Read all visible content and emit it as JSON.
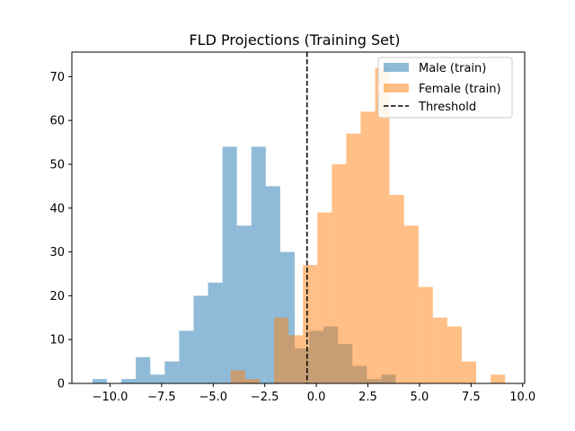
{
  "chart_data": {
    "type": "histogram",
    "title": "FLD Projections (Training Set)",
    "xlabel": "",
    "ylabel": "",
    "xlim": [
      -11.85,
      10.1
    ],
    "ylim": [
      0,
      75.6
    ],
    "x_ticks": [
      -10.0,
      -7.5,
      -5.0,
      -2.5,
      0.0,
      2.5,
      5.0,
      7.5,
      10.0
    ],
    "x_tick_labels": [
      "−10.0",
      "−7.5",
      "−5.0",
      "−2.5",
      "0.0",
      "2.5",
      "5.0",
      "7.5",
      "10.0"
    ],
    "y_ticks": [
      0,
      10,
      20,
      30,
      40,
      50,
      60,
      70
    ],
    "y_tick_labels": [
      "0",
      "10",
      "20",
      "30",
      "40",
      "50",
      "60",
      "70"
    ],
    "grid": false,
    "legend_position": "upper right",
    "series": [
      {
        "name": "Male (train)",
        "color": "#1f77b4",
        "alpha": 0.5,
        "bins": [
          {
            "x0": -10.85,
            "x1": -10.15,
            "count": 1
          },
          {
            "x0": -10.15,
            "x1": -9.45,
            "count": 0
          },
          {
            "x0": -9.45,
            "x1": -8.75,
            "count": 1
          },
          {
            "x0": -8.75,
            "x1": -8.05,
            "count": 6
          },
          {
            "x0": -8.05,
            "x1": -7.35,
            "count": 2
          },
          {
            "x0": -7.35,
            "x1": -6.65,
            "count": 5
          },
          {
            "x0": -6.65,
            "x1": -5.95,
            "count": 12
          },
          {
            "x0": -5.95,
            "x1": -5.25,
            "count": 20
          },
          {
            "x0": -5.25,
            "x1": -4.55,
            "count": 23
          },
          {
            "x0": -4.55,
            "x1": -3.85,
            "count": 54
          },
          {
            "x0": -3.85,
            "x1": -3.15,
            "count": 36
          },
          {
            "x0": -3.15,
            "x1": -2.45,
            "count": 54
          },
          {
            "x0": -2.45,
            "x1": -1.75,
            "count": 45
          },
          {
            "x0": -1.75,
            "x1": -1.05,
            "count": 30
          },
          {
            "x0": -1.05,
            "x1": -0.35,
            "count": 8
          },
          {
            "x0": -0.35,
            "x1": 0.35,
            "count": 12
          },
          {
            "x0": 0.35,
            "x1": 1.05,
            "count": 13
          },
          {
            "x0": 1.05,
            "x1": 1.75,
            "count": 9
          },
          {
            "x0": 1.75,
            "x1": 2.45,
            "count": 4
          },
          {
            "x0": 2.45,
            "x1": 3.15,
            "count": 1
          },
          {
            "x0": 3.15,
            "x1": 3.85,
            "count": 2
          }
        ]
      },
      {
        "name": "Female (train)",
        "color": "#ff7f0e",
        "alpha": 0.5,
        "bins": [
          {
            "x0": -4.15,
            "x1": -3.45,
            "count": 3
          },
          {
            "x0": -3.45,
            "x1": -2.75,
            "count": 1
          },
          {
            "x0": -2.75,
            "x1": -2.05,
            "count": 0
          },
          {
            "x0": -2.05,
            "x1": -1.35,
            "count": 15
          },
          {
            "x0": -1.35,
            "x1": -0.65,
            "count": 11
          },
          {
            "x0": -0.65,
            "x1": 0.05,
            "count": 27
          },
          {
            "x0": 0.05,
            "x1": 0.75,
            "count": 39
          },
          {
            "x0": 0.75,
            "x1": 1.45,
            "count": 50
          },
          {
            "x0": 1.45,
            "x1": 2.15,
            "count": 57
          },
          {
            "x0": 2.15,
            "x1": 2.85,
            "count": 62
          },
          {
            "x0": 2.85,
            "x1": 3.55,
            "count": 72
          },
          {
            "x0": 3.55,
            "x1": 4.25,
            "count": 43
          },
          {
            "x0": 4.25,
            "x1": 4.95,
            "count": 36
          },
          {
            "x0": 4.95,
            "x1": 5.65,
            "count": 22
          },
          {
            "x0": 5.65,
            "x1": 6.35,
            "count": 15
          },
          {
            "x0": 6.35,
            "x1": 7.05,
            "count": 13
          },
          {
            "x0": 7.05,
            "x1": 7.75,
            "count": 5
          },
          {
            "x0": 7.75,
            "x1": 8.45,
            "count": 0
          },
          {
            "x0": 8.45,
            "x1": 9.15,
            "count": 2
          }
        ]
      }
    ],
    "threshold": {
      "name": "Threshold",
      "x": -0.45,
      "color": "#000000",
      "style": "dashed"
    }
  }
}
